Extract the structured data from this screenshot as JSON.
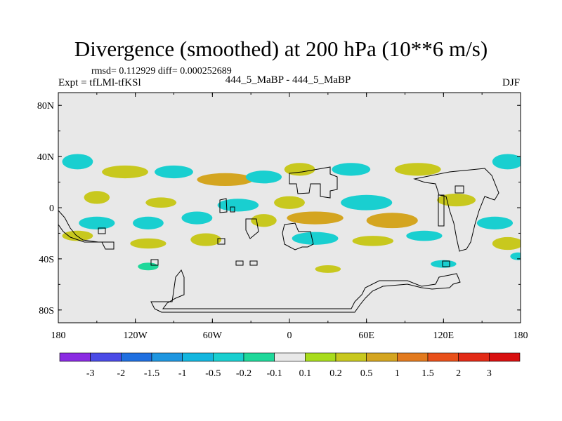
{
  "chart_data": {
    "type": "heatmap",
    "title": "Divergence (smoothed) at 200 hPa (10**6 m/s)",
    "subtitle_left_top": "rmsd= 0.112929 diff= 0.000252689",
    "subtitle_left": "Expt = tfLMl-tfKSl",
    "subtitle_center": "444_5_MaBP - 444_5_MaBP",
    "subtitle_right": "DJF",
    "xlabel": "",
    "ylabel": "",
    "x_range": [
      -180,
      180
    ],
    "y_range": [
      -90,
      90
    ],
    "x_ticks": [
      {
        "value": -180,
        "label": "180"
      },
      {
        "value": -120,
        "label": "120W"
      },
      {
        "value": -60,
        "label": "60W"
      },
      {
        "value": 0,
        "label": "0"
      },
      {
        "value": 60,
        "label": "60E"
      },
      {
        "value": 120,
        "label": "120E"
      },
      {
        "value": 180,
        "label": "180"
      }
    ],
    "y_ticks": [
      {
        "value": 80,
        "label": "80N"
      },
      {
        "value": 40,
        "label": "40N"
      },
      {
        "value": 0,
        "label": "0"
      },
      {
        "value": -40,
        "label": "40S"
      },
      {
        "value": -80,
        "label": "80S"
      }
    ],
    "colorbar": {
      "labels": [
        "-3",
        "-2",
        "-1.5",
        "-1",
        "-0.5",
        "-0.2",
        "-0.1",
        "0.1",
        "0.2",
        "0.5",
        "1",
        "1.5",
        "2",
        "3"
      ],
      "colors": [
        "#8a2be2",
        "#4a4ae6",
        "#1f6fe0",
        "#1e96e0",
        "#13b6df",
        "#19cfd0",
        "#1ed89a",
        "#e8e8e8",
        "#a8dc1c",
        "#c8c81e",
        "#d4a520",
        "#e27a1e",
        "#e8501a",
        "#e22a16",
        "#d80f0f"
      ]
    },
    "regions": [
      {
        "lon": -165,
        "lat": 36,
        "rx": 12,
        "ry": 6,
        "value": -0.3
      },
      {
        "lon": -128,
        "lat": 28,
        "rx": 18,
        "ry": 5,
        "value": 0.4
      },
      {
        "lon": -90,
        "lat": 28,
        "rx": 15,
        "ry": 5,
        "value": -0.3
      },
      {
        "lon": -50,
        "lat": 22,
        "rx": 22,
        "ry": 5,
        "value": 0.5
      },
      {
        "lon": -20,
        "lat": 24,
        "rx": 14,
        "ry": 5,
        "value": -0.3
      },
      {
        "lon": 8,
        "lat": 30,
        "rx": 12,
        "ry": 5,
        "value": 0.4
      },
      {
        "lon": 48,
        "lat": 30,
        "rx": 15,
        "ry": 5,
        "value": -0.4
      },
      {
        "lon": 100,
        "lat": 30,
        "rx": 18,
        "ry": 5,
        "value": 0.4
      },
      {
        "lon": 170,
        "lat": 36,
        "rx": 12,
        "ry": 6,
        "value": -0.3
      },
      {
        "lon": -150,
        "lat": 8,
        "rx": 10,
        "ry": 5,
        "value": 0.3
      },
      {
        "lon": -100,
        "lat": 4,
        "rx": 12,
        "ry": 4,
        "value": 0.4
      },
      {
        "lon": -40,
        "lat": 2,
        "rx": 16,
        "ry": 5,
        "value": -0.4
      },
      {
        "lon": 0,
        "lat": 4,
        "rx": 12,
        "ry": 5,
        "value": 0.3
      },
      {
        "lon": 60,
        "lat": 4,
        "rx": 20,
        "ry": 6,
        "value": -0.3
      },
      {
        "lon": 130,
        "lat": 6,
        "rx": 15,
        "ry": 5,
        "value": 0.3
      },
      {
        "lon": -150,
        "lat": -12,
        "rx": 14,
        "ry": 5,
        "value": -0.5
      },
      {
        "lon": -110,
        "lat": -12,
        "rx": 12,
        "ry": 5,
        "value": -0.3
      },
      {
        "lon": -72,
        "lat": -8,
        "rx": 12,
        "ry": 5,
        "value": -0.3
      },
      {
        "lon": -20,
        "lat": -10,
        "rx": 10,
        "ry": 5,
        "value": 0.3
      },
      {
        "lon": 20,
        "lat": -8,
        "rx": 22,
        "ry": 5,
        "value": 0.6
      },
      {
        "lon": 80,
        "lat": -10,
        "rx": 20,
        "ry": 6,
        "value": 0.5
      },
      {
        "lon": 160,
        "lat": -12,
        "rx": 14,
        "ry": 5,
        "value": -0.4
      },
      {
        "lon": -165,
        "lat": -22,
        "rx": 12,
        "ry": 4,
        "value": 0.3
      },
      {
        "lon": -110,
        "lat": -28,
        "rx": 14,
        "ry": 4,
        "value": 0.3
      },
      {
        "lon": -65,
        "lat": -25,
        "rx": 12,
        "ry": 5,
        "value": 0.4
      },
      {
        "lon": 20,
        "lat": -24,
        "rx": 18,
        "ry": 5,
        "value": -0.3
      },
      {
        "lon": 65,
        "lat": -26,
        "rx": 16,
        "ry": 4,
        "value": 0.4
      },
      {
        "lon": 105,
        "lat": -22,
        "rx": 14,
        "ry": 4,
        "value": -0.3
      },
      {
        "lon": 170,
        "lat": -28,
        "rx": 12,
        "ry": 5,
        "value": 0.3
      },
      {
        "lon": -110,
        "lat": -46,
        "rx": 8,
        "ry": 3,
        "value": -0.2
      },
      {
        "lon": 30,
        "lat": -48,
        "rx": 10,
        "ry": 3,
        "value": 0.3
      },
      {
        "lon": 120,
        "lat": -44,
        "rx": 10,
        "ry": 3,
        "value": -0.3
      },
      {
        "lon": 178,
        "lat": -38,
        "rx": 6,
        "ry": 3,
        "value": -0.3
      }
    ]
  }
}
